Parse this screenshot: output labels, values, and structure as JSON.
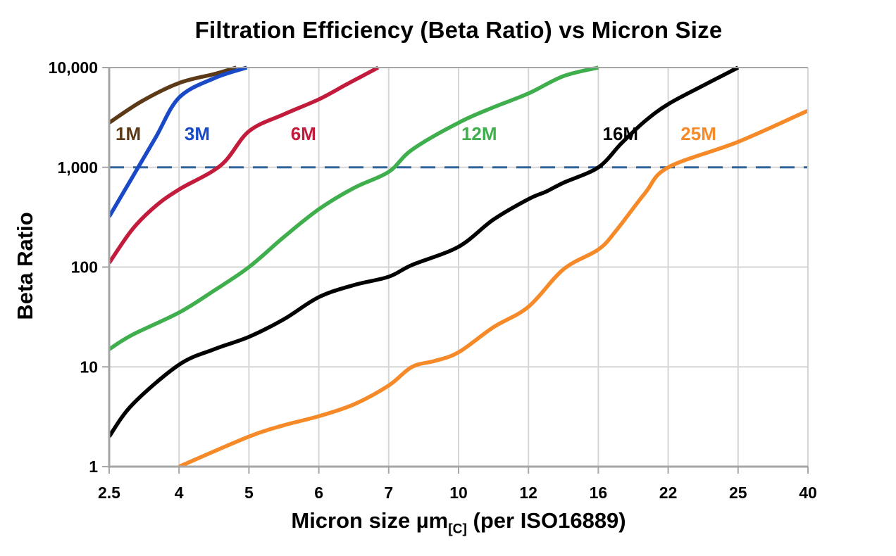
{
  "chart_data": {
    "type": "line",
    "title": "Filtration Efficiency (Beta Ratio) vs Micron Size",
    "ylabel": "Beta Ratio",
    "xlabel_prefix": "Micron size µm",
    "xlabel_sub": "[C]",
    "xlabel_suffix": " (per ISO16889)",
    "x_tick_labels": [
      "2.5",
      "4",
      "5",
      "6",
      "7",
      "10",
      "12",
      "16",
      "22",
      "25",
      "40"
    ],
    "x_tick_values": [
      2.5,
      4,
      5,
      6,
      7,
      10,
      12,
      16,
      22,
      25,
      40
    ],
    "x_axis_type": "irregular tick values at even spacing",
    "y_tick_labels": [
      "10,000",
      "1,000",
      "100",
      "10",
      "1"
    ],
    "y_tick_values": [
      10000,
      1000,
      100,
      10,
      1
    ],
    "y_scale": "log",
    "ylim": [
      1,
      10000
    ],
    "grid": true,
    "legend_position": "labels next to curves",
    "reference_line": {
      "beta": 1000,
      "style": "dashed",
      "color": "#2E6499",
      "dash": "21 13"
    },
    "series": [
      {
        "name": "1M",
        "color": "#5D3A17",
        "label_pos": {
          "micron": 2.91,
          "beta": 2170
        },
        "points": [
          [
            2.5,
            2800
          ],
          [
            3.2,
            4600
          ],
          [
            4,
            7000
          ],
          [
            4.5,
            8600
          ],
          [
            4.82,
            10000
          ]
        ]
      },
      {
        "name": "3M",
        "color": "#1949C6",
        "label_pos": {
          "micron": 4.26,
          "beta": 2170
        },
        "points": [
          [
            2.5,
            320
          ],
          [
            3,
            800
          ],
          [
            3.5,
            2000
          ],
          [
            4,
            5000
          ],
          [
            4.5,
            7800
          ],
          [
            4.97,
            10000
          ]
        ]
      },
      {
        "name": "6M",
        "color": "#C21B3B",
        "label_pos": {
          "micron": 5.78,
          "beta": 2170
        },
        "points": [
          [
            2.5,
            110
          ],
          [
            3,
            240
          ],
          [
            3.5,
            410
          ],
          [
            4,
            600
          ],
          [
            4.6,
            1050
          ],
          [
            5,
            2300
          ],
          [
            5.5,
            3400
          ],
          [
            6,
            4800
          ],
          [
            6.4,
            6800
          ],
          [
            6.85,
            10000
          ]
        ]
      },
      {
        "name": "12M",
        "color": "#3FAE4C",
        "label_pos": {
          "micron": 10.59,
          "beta": 2170
        },
        "points": [
          [
            2.5,
            15
          ],
          [
            3,
            21
          ],
          [
            4,
            35
          ],
          [
            4.5,
            58
          ],
          [
            5,
            100
          ],
          [
            5.5,
            200
          ],
          [
            6,
            380
          ],
          [
            6.5,
            620
          ],
          [
            7,
            900
          ],
          [
            8,
            1500
          ],
          [
            10,
            2800
          ],
          [
            11,
            4000
          ],
          [
            12,
            5500
          ],
          [
            14,
            8200
          ],
          [
            16,
            10000
          ]
        ]
      },
      {
        "name": "16M",
        "color": "#000000",
        "label_pos": {
          "micron": 17.9,
          "beta": 2170
        },
        "points": [
          [
            2.5,
            2
          ],
          [
            3,
            4.2
          ],
          [
            4,
            10.5
          ],
          [
            4.5,
            15
          ],
          [
            5,
            20
          ],
          [
            5.5,
            30
          ],
          [
            6,
            50
          ],
          [
            6.5,
            66
          ],
          [
            7,
            80
          ],
          [
            8,
            105
          ],
          [
            10,
            160
          ],
          [
            11,
            300
          ],
          [
            12,
            480
          ],
          [
            13,
            570
          ],
          [
            14,
            700
          ],
          [
            16,
            1000
          ],
          [
            18,
            1750
          ],
          [
            20,
            2900
          ],
          [
            22,
            4300
          ],
          [
            23.5,
            6600
          ],
          [
            25,
            10000
          ]
        ]
      },
      {
        "name": "25M",
        "color": "#F68A28",
        "label_pos": {
          "micron": 23.3,
          "beta": 2170
        },
        "points": [
          [
            4,
            1
          ],
          [
            5,
            2
          ],
          [
            5.5,
            2.6
          ],
          [
            6,
            3.2
          ],
          [
            6.5,
            4.2
          ],
          [
            7,
            6.5
          ],
          [
            8,
            10
          ],
          [
            9,
            11.5
          ],
          [
            10,
            14
          ],
          [
            11,
            25
          ],
          [
            12,
            40
          ],
          [
            14,
            95
          ],
          [
            16,
            150
          ],
          [
            17.5,
            230
          ],
          [
            20,
            550
          ],
          [
            22,
            1000
          ],
          [
            25,
            1800
          ],
          [
            40,
            3700
          ]
        ]
      }
    ]
  },
  "colors": {
    "background": "#FFFFFF",
    "grid": "#D5D5D5",
    "axis": "#A6A6A6",
    "text": "#000000"
  }
}
